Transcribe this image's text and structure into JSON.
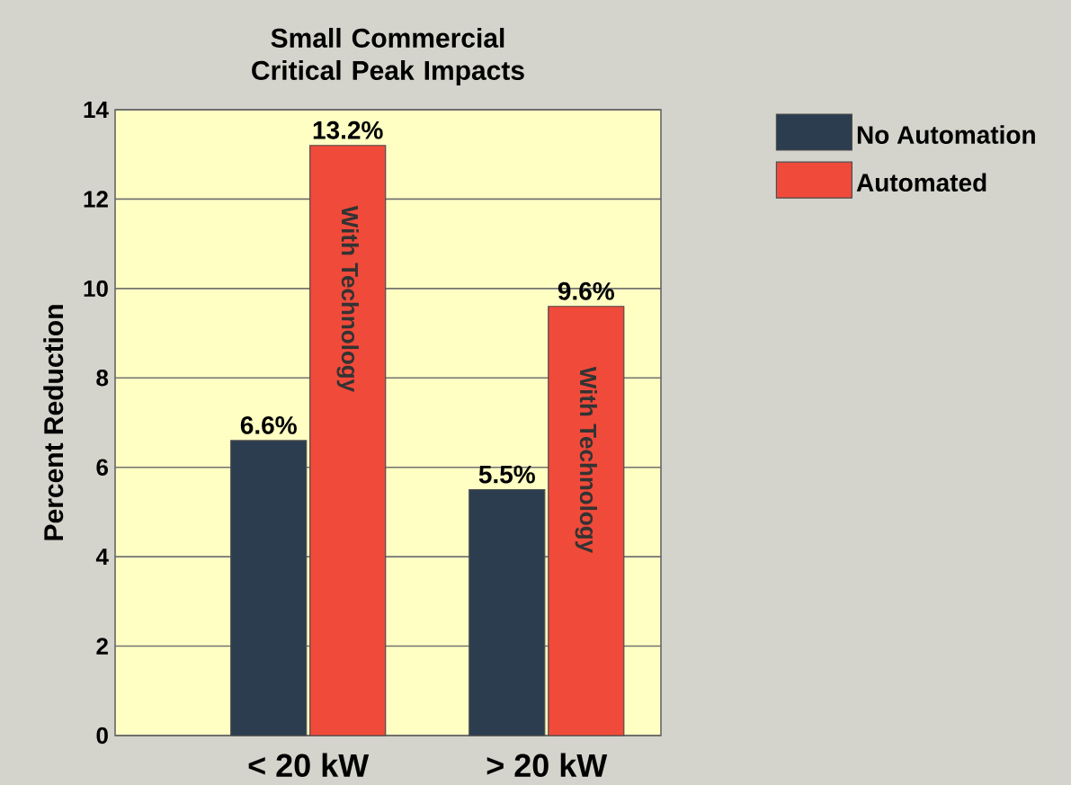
{
  "chart_data": {
    "type": "bar",
    "title": "Small Commercial Critical Peak Impacts",
    "ylabel": "Percent Reduction",
    "categories": [
      "< 20 kW",
      "> 20 kW"
    ],
    "series": [
      {
        "name": "No Automation",
        "color": "#2b3d4f",
        "values": [
          6.6,
          5.5
        ],
        "value_labels": [
          "6.6%",
          "5.5%"
        ]
      },
      {
        "name": "Automated",
        "color": "#f04a3a",
        "values": [
          13.2,
          9.6
        ],
        "value_labels": [
          "13.2%",
          "9.6%"
        ]
      }
    ],
    "annotations": [
      "With Technology",
      "With Technology"
    ],
    "ylim": [
      0,
      14
    ],
    "yticks": [
      0,
      2,
      4,
      6,
      8,
      10,
      12,
      14
    ],
    "grid": "y",
    "legend": "top right"
  }
}
